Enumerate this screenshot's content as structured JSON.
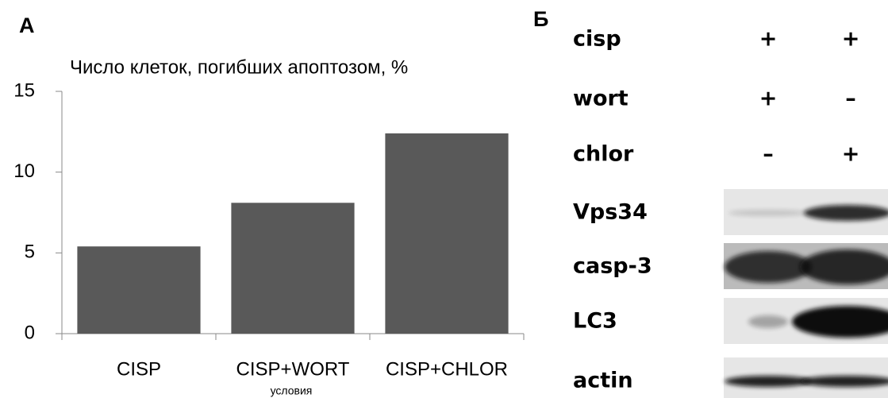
{
  "panels": {
    "a": "А",
    "b": "Б"
  },
  "chart_data": {
    "type": "bar",
    "title": "Число клеток, погибших апоптозом, %",
    "x_label": "условия",
    "categories": [
      "CISP",
      "CISP+WORT",
      "CISP+CHLOR"
    ],
    "values": [
      5.4,
      8.1,
      12.4
    ],
    "color": "#595959",
    "ylim": [
      0,
      15
    ],
    "yticks": [
      0,
      5,
      10,
      15
    ]
  },
  "blot": {
    "conditions": [
      {
        "label": "cisp",
        "cells": [
          "+",
          "+"
        ]
      },
      {
        "label": "wort",
        "cells": [
          "+",
          "–"
        ]
      },
      {
        "label": "chlor",
        "cells": [
          "–",
          "+"
        ]
      }
    ],
    "bands": [
      "Vps34",
      "casp-3",
      "LC3",
      "actin"
    ]
  }
}
